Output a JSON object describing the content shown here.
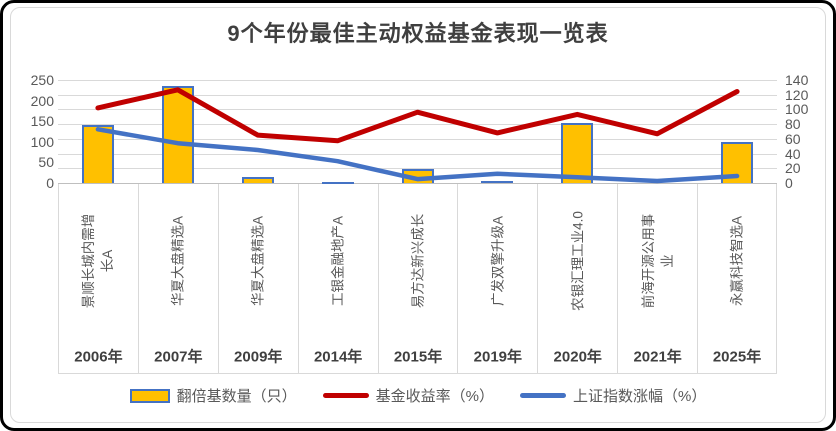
{
  "title": "9个年份最佳主动权益基金表现一览表",
  "chart_data": {
    "type": "combo (bar + 2 lines)",
    "categories": [
      "2006年",
      "2007年",
      "2009年",
      "2014年",
      "2015年",
      "2019年",
      "2020年",
      "2021年",
      "2025年"
    ],
    "category_funds": [
      "景顺长城内需增长A",
      "华夏大盘精选A",
      "华夏大盘精选A",
      "工银金融地产A",
      "易方达新兴成长",
      "广发双擎升级A",
      "农银汇理工业4.0",
      "前海开源公用事业",
      "永赢科技智选A"
    ],
    "series": [
      {
        "name": "翻倍基数量（只）",
        "type": "bar",
        "color": "#FFC000",
        "border_color": "#4472C4",
        "values": [
          140,
          235,
          15,
          2,
          33,
          5,
          145,
          0,
          100
        ]
      },
      {
        "name": "基金收益率（%）",
        "type": "line",
        "color": "#C00000",
        "values": [
          182.2,
          226.1,
          116.2,
          102.5,
          171.8,
          121.7,
          166.6,
          119.4,
          222
        ]
      },
      {
        "name": "上证指数涨幅（%）",
        "type": "line",
        "color": "#4472C4",
        "values": [
          130.4,
          96.7,
          80,
          52.9,
          9.4,
          22.3,
          13.9,
          4.8,
          17
        ]
      }
    ],
    "left_axis": {
      "min": 0,
      "max": 250,
      "step": 50,
      "ticks": [
        0,
        50,
        100,
        150,
        200,
        250
      ]
    },
    "right_axis": {
      "min": 0,
      "max": 140,
      "step": 20,
      "ticks": [
        0,
        20,
        40,
        60,
        80,
        100,
        120,
        140
      ]
    },
    "grid": "horizontal gridlines at right-axis steps",
    "legend_position": "bottom",
    "colors": {
      "grid": "#d9d9d9",
      "axis_text": "#595959",
      "year_text": "#404040",
      "title_text": "#3f3f3f"
    }
  }
}
